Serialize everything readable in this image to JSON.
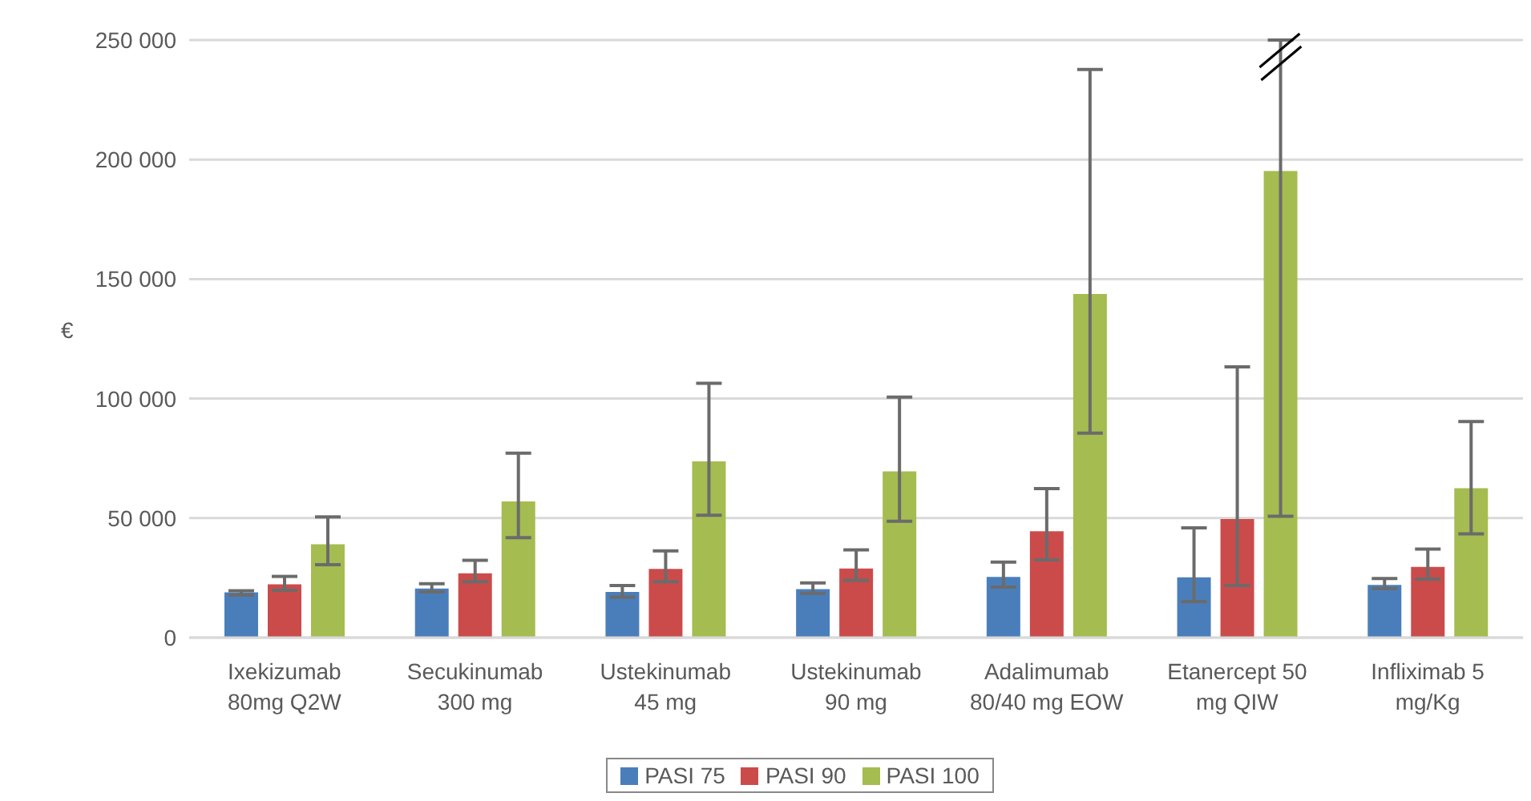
{
  "chart_data": {
    "type": "bar",
    "ylabel": "€",
    "categories": [
      "Ixekizumab 80mg Q2W",
      "Secukinumab 300 mg",
      "Ustekinumab 45 mg",
      "Ustekinumab 90 mg",
      "Adalimumab 80/40 mg EOW",
      "Etanercept 50 mg QIW",
      "Infliximab 5 mg/Kg"
    ],
    "series": [
      {
        "name": "PASI 75",
        "color": "#4a7ebb",
        "values": [
          18900,
          20500,
          19100,
          20300,
          25400,
          25200,
          22000
        ],
        "errors": [
          [
            17800,
            19600
          ],
          [
            19100,
            22500
          ],
          [
            16900,
            21800
          ],
          [
            18500,
            22900
          ],
          [
            21100,
            31600
          ],
          [
            15100,
            45900
          ],
          [
            20500,
            24700
          ]
        ]
      },
      {
        "name": "PASI 90",
        "color": "#cb4b4b",
        "values": [
          22300,
          26900,
          28700,
          28900,
          44500,
          49600,
          29600
        ],
        "errors": [
          [
            19800,
            25600
          ],
          [
            23400,
            32300
          ],
          [
            23400,
            36300
          ],
          [
            24000,
            36700
          ],
          [
            32500,
            62300
          ],
          [
            21800,
            113300
          ],
          [
            24500,
            37000
          ]
        ]
      },
      {
        "name": "PASI 100",
        "color": "#a5bc50",
        "values": [
          39000,
          57000,
          73700,
          69500,
          143800,
          195200,
          62500
        ],
        "errors": [
          [
            30500,
            50500
          ],
          [
            41800,
            77200
          ],
          [
            51200,
            106400
          ],
          [
            48700,
            100600
          ],
          [
            85500,
            237700
          ],
          [
            50800,
            250000
          ],
          [
            43400,
            90400
          ]
        ]
      }
    ],
    "ylim": [
      0,
      250000
    ],
    "yticks": [
      {
        "value": 0,
        "label": "0"
      },
      {
        "value": 50000,
        "label": "50 000"
      },
      {
        "value": 100000,
        "label": "100 000"
      },
      {
        "value": 150000,
        "label": "150 000"
      },
      {
        "value": 200000,
        "label": "200 000"
      },
      {
        "value": 250000,
        "label": "250 000"
      }
    ],
    "grid": "y",
    "legend": "bottom"
  }
}
